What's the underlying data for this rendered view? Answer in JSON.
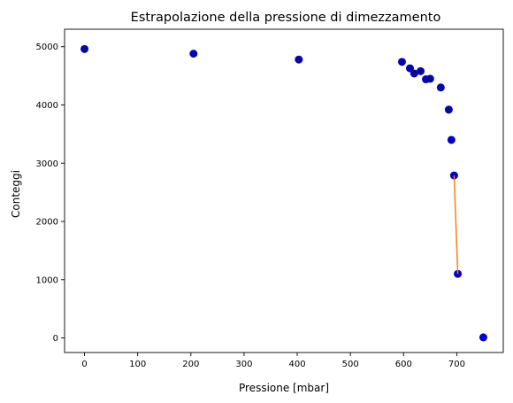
{
  "chart_data": {
    "type": "scatter",
    "title": "Estrapolazione della pressione di dimezzamento",
    "xlabel": "Pressione [mbar]",
    "ylabel": "Conteggi",
    "xlim": [
      -37.5,
      787.5
    ],
    "ylim": [
      -250,
      5300
    ],
    "xticks": [
      0,
      100,
      200,
      300,
      400,
      500,
      600,
      700
    ],
    "yticks": [
      0,
      1000,
      2000,
      3000,
      4000,
      5000
    ],
    "grid": false,
    "series": [
      {
        "kind": "scatter",
        "color": "#0000cc",
        "points": [
          {
            "x": 0,
            "y": 4960,
            "err": 45
          },
          {
            "x": 205,
            "y": 4880,
            "err": 45
          },
          {
            "x": 403,
            "y": 4780,
            "err": 45
          },
          {
            "x": 597,
            "y": 4740,
            "err": 45
          },
          {
            "x": 612,
            "y": 4630,
            "err": 45
          },
          {
            "x": 620,
            "y": 4540,
            "err": 45
          },
          {
            "x": 632,
            "y": 4580,
            "err": 45
          },
          {
            "x": 642,
            "y": 4440,
            "err": 45
          },
          {
            "x": 650,
            "y": 4450,
            "err": 45
          },
          {
            "x": 670,
            "y": 4300,
            "err": 45
          },
          {
            "x": 685,
            "y": 3920,
            "err": 45
          },
          {
            "x": 690,
            "y": 3400,
            "err": 40
          },
          {
            "x": 695,
            "y": 2790,
            "err": 35
          },
          {
            "x": 702,
            "y": 1100,
            "err": 25
          },
          {
            "x": 750,
            "y": 10,
            "err": 5
          }
        ]
      },
      {
        "kind": "line",
        "color": "#ff7f0e",
        "points": [
          {
            "x": 695,
            "y": 2790
          },
          {
            "x": 702,
            "y": 1100
          }
        ]
      }
    ]
  }
}
